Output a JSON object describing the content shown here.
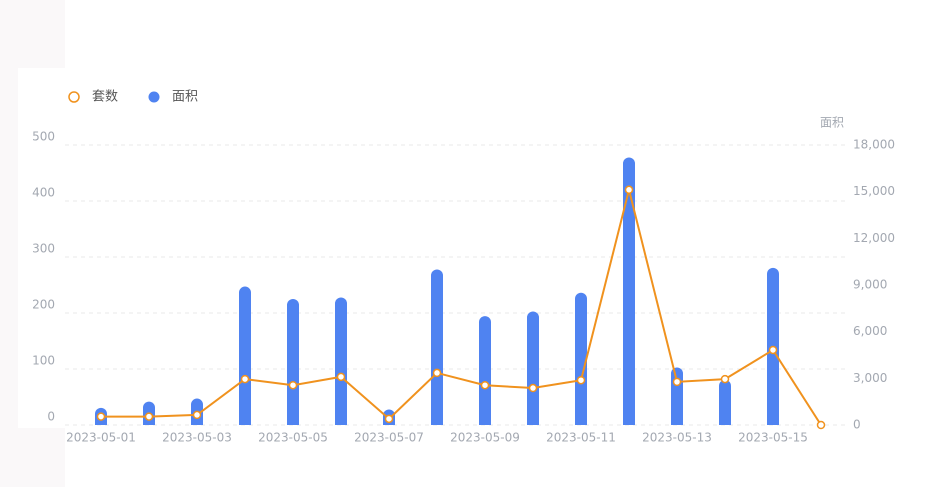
{
  "chart_data": {
    "type": "bar",
    "categories": [
      "2023-05-01",
      null,
      "2023-05-03",
      null,
      "2023-05-05",
      null,
      "2023-05-07",
      null,
      "2023-05-09",
      null,
      "2023-05-11",
      null,
      "2023-05-13",
      null,
      "2023-05-15",
      null
    ],
    "series": [
      {
        "name": "套数",
        "type": "line",
        "color": "#f0921e",
        "values": [
          15,
          15,
          18,
          82,
          71,
          86,
          11,
          93,
          71,
          66,
          80,
          420,
          77,
          82,
          134,
          0
        ]
      },
      {
        "name": "面积",
        "type": "bar",
        "axis": "y2",
        "color": "#4f83f1",
        "values": [
          1100,
          1500,
          1700,
          8900,
          8100,
          8200,
          1000,
          10000,
          7000,
          7300,
          8500,
          17200,
          3700,
          2900,
          10100,
          0
        ]
      }
    ],
    "ylim": [
      0,
      500
    ],
    "yticks": [
      0,
      100,
      200,
      300,
      400,
      500
    ],
    "y2label": "面积",
    "y2lim": [
      0,
      18000
    ],
    "y2ticks": [
      0,
      {
        "value": 3000,
        "label": "3,000"
      },
      {
        "value": 6000,
        "label": "6,000"
      },
      {
        "value": 9000,
        "label": "9,000"
      },
      {
        "value": 12000,
        "label": "12,000"
      },
      {
        "value": 15000,
        "label": "15,000"
      },
      {
        "value": 18000,
        "label": "18,000"
      }
    ],
    "grid": true,
    "legend": "top-left"
  }
}
